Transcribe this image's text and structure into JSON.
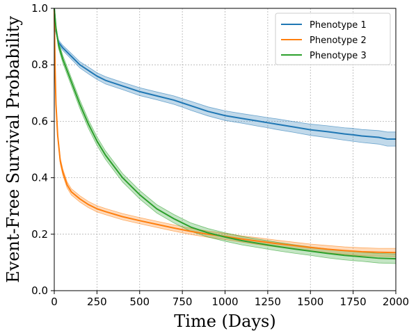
{
  "chart_data": {
    "type": "line",
    "title": "",
    "xlabel": "Time (Days)",
    "ylabel": "Event-Free Survival Probability",
    "xlim": [
      0,
      2000
    ],
    "ylim": [
      0.0,
      1.0
    ],
    "x_ticks": [
      0,
      250,
      500,
      750,
      1000,
      1250,
      1500,
      1750,
      2000
    ],
    "y_ticks": [
      0.0,
      0.2,
      0.4,
      0.6,
      0.8,
      1.0
    ],
    "x_tick_labels": [
      "0",
      "250",
      "500",
      "750",
      "1000",
      "1250",
      "1500",
      "1750",
      "2000"
    ],
    "y_tick_labels": [
      "0.0",
      "0.2",
      "0.4",
      "0.6",
      "0.8",
      "1.0"
    ],
    "grid": true,
    "legend_position": "top-right",
    "series": [
      {
        "name": "Phenotype 1",
        "color": "#1f77b4",
        "x": [
          0,
          10,
          25,
          50,
          100,
          150,
          200,
          250,
          300,
          400,
          500,
          600,
          700,
          750,
          800,
          900,
          1000,
          1100,
          1200,
          1250,
          1300,
          1400,
          1500,
          1600,
          1700,
          1750,
          1800,
          1900,
          1950,
          2000
        ],
        "y": [
          1.0,
          0.92,
          0.88,
          0.86,
          0.83,
          0.8,
          0.78,
          0.76,
          0.745,
          0.725,
          0.705,
          0.69,
          0.675,
          0.665,
          0.655,
          0.635,
          0.62,
          0.61,
          0.6,
          0.595,
          0.59,
          0.58,
          0.57,
          0.563,
          0.555,
          0.552,
          0.548,
          0.543,
          0.537,
          0.537
        ],
        "ci_halfwidth": [
          0.0,
          0.006,
          0.008,
          0.009,
          0.01,
          0.011,
          0.012,
          0.012,
          0.013,
          0.013,
          0.014,
          0.014,
          0.015,
          0.015,
          0.016,
          0.016,
          0.017,
          0.017,
          0.018,
          0.018,
          0.019,
          0.019,
          0.02,
          0.021,
          0.022,
          0.023,
          0.023,
          0.024,
          0.025,
          0.025
        ]
      },
      {
        "name": "Phenotype 2",
        "color": "#ff7f0e",
        "x": [
          0,
          5,
          10,
          20,
          35,
          50,
          75,
          100,
          150,
          200,
          250,
          300,
          400,
          500,
          600,
          700,
          800,
          900,
          1000,
          1100,
          1200,
          1300,
          1400,
          1500,
          1600,
          1700,
          1800,
          1900,
          2000
        ],
        "y": [
          1.0,
          0.78,
          0.66,
          0.55,
          0.46,
          0.42,
          0.375,
          0.35,
          0.325,
          0.305,
          0.29,
          0.28,
          0.262,
          0.248,
          0.235,
          0.222,
          0.21,
          0.2,
          0.192,
          0.183,
          0.175,
          0.167,
          0.16,
          0.153,
          0.147,
          0.142,
          0.138,
          0.136,
          0.135
        ],
        "ci_halfwidth": [
          0.0,
          0.01,
          0.01,
          0.011,
          0.011,
          0.011,
          0.011,
          0.011,
          0.011,
          0.011,
          0.011,
          0.011,
          0.011,
          0.011,
          0.011,
          0.011,
          0.011,
          0.011,
          0.011,
          0.011,
          0.012,
          0.012,
          0.012,
          0.012,
          0.013,
          0.013,
          0.014,
          0.014,
          0.015
        ]
      },
      {
        "name": "Phenotype 3",
        "color": "#2ca02c",
        "x": [
          0,
          10,
          25,
          50,
          75,
          100,
          150,
          200,
          250,
          300,
          350,
          400,
          450,
          500,
          550,
          600,
          700,
          800,
          900,
          1000,
          1100,
          1200,
          1300,
          1400,
          1500,
          1600,
          1700,
          1800,
          1900,
          2000
        ],
        "y": [
          1.0,
          0.93,
          0.87,
          0.82,
          0.78,
          0.74,
          0.66,
          0.59,
          0.53,
          0.48,
          0.44,
          0.4,
          0.37,
          0.34,
          0.315,
          0.29,
          0.255,
          0.225,
          0.205,
          0.19,
          0.177,
          0.167,
          0.157,
          0.148,
          0.14,
          0.132,
          0.125,
          0.12,
          0.115,
          0.113
        ],
        "ci_halfwidth": [
          0.0,
          0.01,
          0.012,
          0.013,
          0.014,
          0.014,
          0.015,
          0.015,
          0.015,
          0.015,
          0.015,
          0.015,
          0.015,
          0.015,
          0.015,
          0.015,
          0.015,
          0.015,
          0.015,
          0.015,
          0.015,
          0.015,
          0.015,
          0.015,
          0.015,
          0.016,
          0.016,
          0.016,
          0.017,
          0.017
        ]
      }
    ]
  }
}
